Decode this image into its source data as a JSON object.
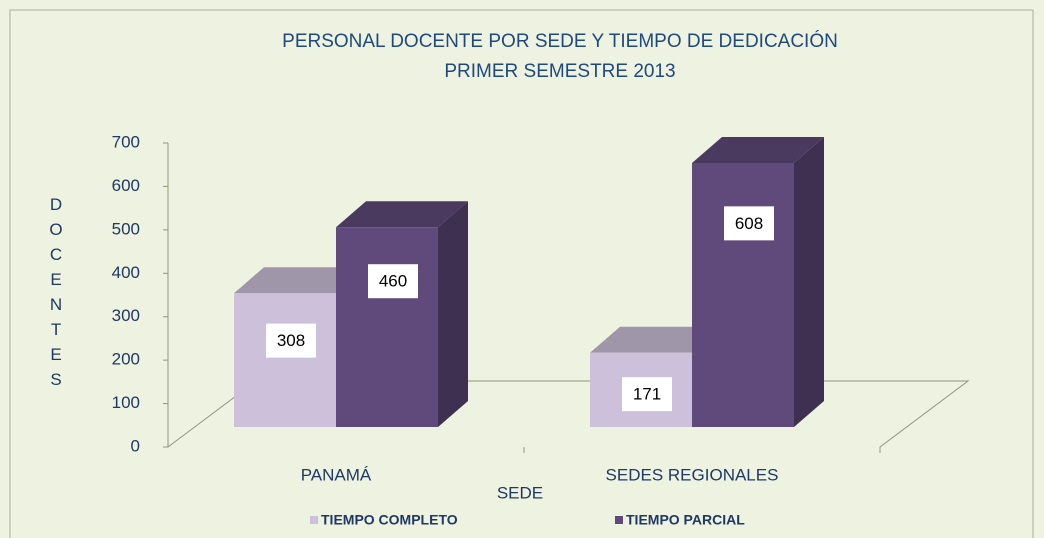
{
  "chart_data": {
    "type": "bar3d",
    "title": [
      "PERSONAL DOCENTE POR SEDE Y TIEMPO DE DEDICACIÓN",
      "PRIMER SEMESTRE 2013"
    ],
    "ylabel": "DOCENTES",
    "xlabel": "SEDE",
    "categories": [
      "PANAMÁ",
      "SEDES REGIONALES"
    ],
    "series": [
      {
        "name": "TIEMPO COMPLETO",
        "color": "#ccc0da",
        "values": [
          308,
          171
        ]
      },
      {
        "name": "TIEMPO PARCIAL",
        "color": "#604a7b",
        "values": [
          460,
          608
        ]
      }
    ],
    "ylim": [
      0,
      700
    ],
    "yticks": [
      0,
      100,
      200,
      300,
      400,
      500,
      600,
      700
    ],
    "legend": "bottom"
  }
}
